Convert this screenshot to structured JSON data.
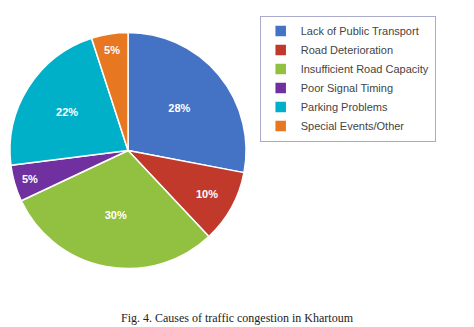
{
  "chart_data": {
    "type": "pie",
    "title": "Fig. 4. Causes of traffic congestion in Khartoum",
    "categories": [
      "Lack of Public Transport",
      "Road Deterioration",
      "Insufficient Road Capacity",
      "Poor Signal Timing",
      "Parking Problems",
      "Special Events/Other"
    ],
    "values": [
      28,
      10,
      30,
      5,
      22,
      5
    ],
    "value_labels": [
      "28%",
      "10%",
      "30%",
      "5%",
      "22%",
      "5%"
    ],
    "colors": [
      "#4472c4",
      "#c0392b",
      "#92c040",
      "#7030a0",
      "#00b0c8",
      "#e87722"
    ],
    "data_labels": true,
    "legend": "right"
  }
}
